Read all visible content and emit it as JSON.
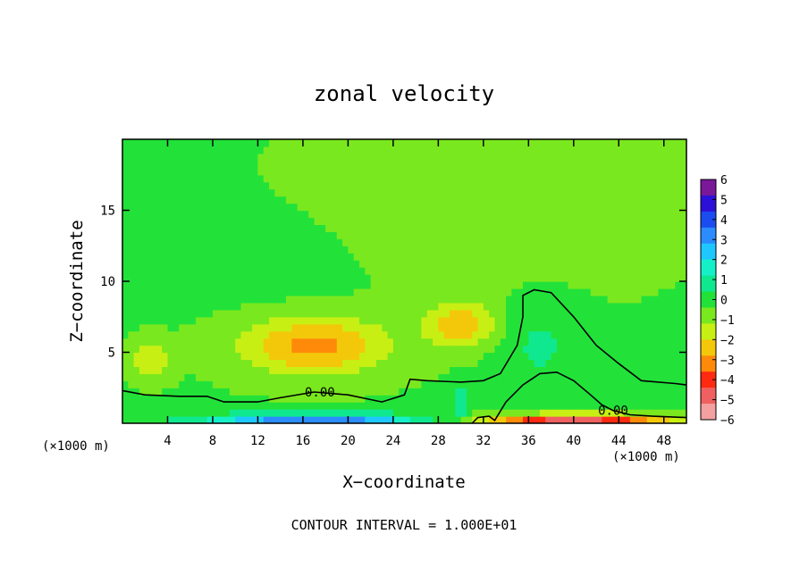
{
  "chart_data": {
    "type": "heatmap",
    "title": "zonal velocity",
    "xlabel": "X−coordinate",
    "ylabel": "Z−coordinate",
    "x_unit_left": "(×1000 m)",
    "x_unit_right": "(×1000 m)",
    "footer": "CONTOUR INTERVAL = 1.000E+01",
    "xlim": [
      0,
      50
    ],
    "ylim": [
      0,
      20
    ],
    "x_ticks": [
      4,
      8,
      12,
      16,
      20,
      24,
      28,
      32,
      36,
      40,
      44,
      48
    ],
    "x_tick_labels": [
      "4",
      "8",
      "12",
      "16",
      "20",
      "24",
      "28",
      "32",
      "36",
      "40",
      "44",
      "48"
    ],
    "y_ticks": [
      5,
      10,
      15
    ],
    "y_tick_labels": [
      "5",
      "10",
      "15"
    ],
    "colorbar": {
      "range": [
        -6,
        6
      ],
      "tick_values": [
        6,
        5,
        4,
        3,
        2,
        1,
        0,
        -1,
        -2,
        -3,
        -4,
        -5,
        -6
      ],
      "tick_labels": [
        "6",
        "5",
        "4",
        "3",
        "2",
        "1",
        "0",
        "−1",
        "−2",
        "−3",
        "−4",
        "−5",
        "−6"
      ],
      "colors": [
        "#7a189a",
        "#2d10d8",
        "#1a4cf0",
        "#2a8cff",
        "#1ec8ff",
        "#16f0c8",
        "#10e890",
        "#22e23a",
        "#7ae81e",
        "#c8ef14",
        "#f4c80a",
        "#ff8a0a",
        "#ff2a10",
        "#f06060",
        "#f4a0a0"
      ]
    },
    "features": [
      {
        "x": 17,
        "z": 5.5,
        "value": -2.8,
        "sx": 4.5,
        "sz": 1.4
      },
      {
        "x": 30,
        "z": 7.0,
        "value": -2.3,
        "sx": 2.2,
        "sz": 1.1
      },
      {
        "x": 2.5,
        "z": 4.5,
        "value": -1.6,
        "sx": 1.2,
        "sz": 0.9
      },
      {
        "x": 37,
        "z": 5.5,
        "value": 0.9,
        "sx": 2.5,
        "sz": 2.3
      },
      {
        "x": 13,
        "z": 11.5,
        "value": 0.25,
        "sx": 6.0,
        "sz": 2.5
      },
      {
        "x": 30,
        "z": 1.5,
        "value": 1.5,
        "sx": 0.6,
        "sz": 0.8
      },
      {
        "x": 17,
        "z": 0.3,
        "value": 4.0,
        "sx": 7.0,
        "sz": 0.3
      },
      {
        "x": 40,
        "z": 0.25,
        "value": -4.5,
        "sx": 6.0,
        "sz": 0.3
      },
      {
        "x": 33,
        "z": 16,
        "value": -0.6,
        "sx": 10,
        "sz": 4
      }
    ],
    "contours": [
      {
        "label": "0.00",
        "label_x": 17.5,
        "label_z": 2.2,
        "points": [
          [
            0,
            2.3
          ],
          [
            2,
            2.0
          ],
          [
            5,
            1.9
          ],
          [
            7.5,
            1.9
          ],
          [
            9,
            1.5
          ],
          [
            12,
            1.5
          ],
          [
            14,
            1.8
          ],
          [
            17,
            2.2
          ],
          [
            20,
            2.0
          ],
          [
            23,
            1.5
          ],
          [
            25,
            2.0
          ],
          [
            25.5,
            3.1
          ],
          [
            27,
            3.0
          ],
          [
            30,
            2.9
          ],
          [
            32,
            3.0
          ],
          [
            33.5,
            3.5
          ],
          [
            35,
            5.5
          ],
          [
            35.5,
            7.5
          ],
          [
            35.5,
            9.0
          ],
          [
            36.5,
            9.4
          ],
          [
            38,
            9.2
          ],
          [
            40,
            7.5
          ],
          [
            42,
            5.5
          ],
          [
            44,
            4.2
          ],
          [
            46,
            3.0
          ],
          [
            49,
            2.8
          ],
          [
            50,
            2.7
          ]
        ]
      },
      {
        "label": "0.00",
        "label_x": 43.5,
        "label_z": 0.9,
        "points": [
          [
            31,
            0
          ],
          [
            31.5,
            0.4
          ],
          [
            32.5,
            0.5
          ],
          [
            33,
            0.2
          ],
          [
            34,
            1.5
          ],
          [
            35.5,
            2.7
          ],
          [
            37,
            3.5
          ],
          [
            38.5,
            3.6
          ],
          [
            40,
            3.0
          ],
          [
            41.5,
            2.0
          ],
          [
            42.5,
            1.3
          ],
          [
            43.5,
            0.9
          ],
          [
            45,
            0.6
          ],
          [
            47,
            0.5
          ],
          [
            50,
            0.4
          ]
        ]
      }
    ]
  }
}
